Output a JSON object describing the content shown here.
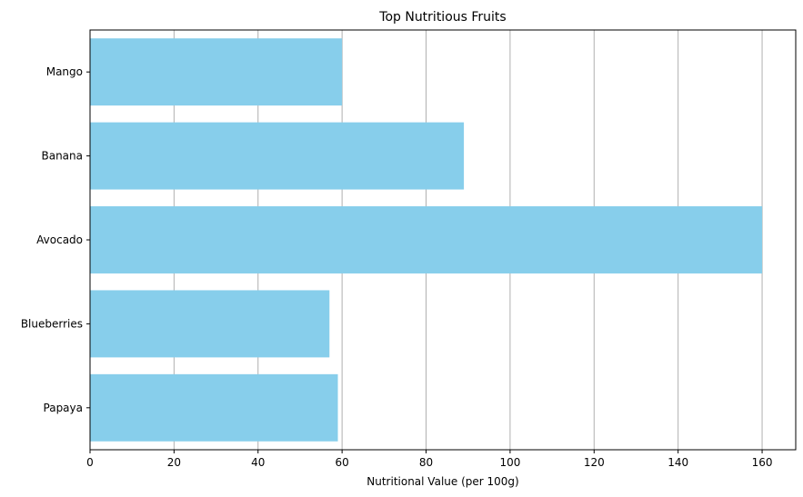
{
  "chart_data": {
    "type": "bar",
    "orientation": "horizontal",
    "title": "Top Nutritious Fruits",
    "xlabel": "Nutritional Value (per 100g)",
    "ylabel": "",
    "categories": [
      "Mango",
      "Banana",
      "Avocado",
      "Blueberries",
      "Papaya"
    ],
    "values": [
      60,
      89,
      160,
      57,
      59
    ],
    "xlim": [
      0,
      168
    ],
    "xticks": [
      0,
      20,
      40,
      60,
      80,
      100,
      120,
      140,
      160
    ],
    "xtick_labels": [
      "0",
      "20",
      "40",
      "60",
      "80",
      "100",
      "120",
      "140",
      "160"
    ],
    "grid": "vertical",
    "bar_color": "#87ceeb",
    "grid_color": "#b0b0b0",
    "legend": "none"
  }
}
